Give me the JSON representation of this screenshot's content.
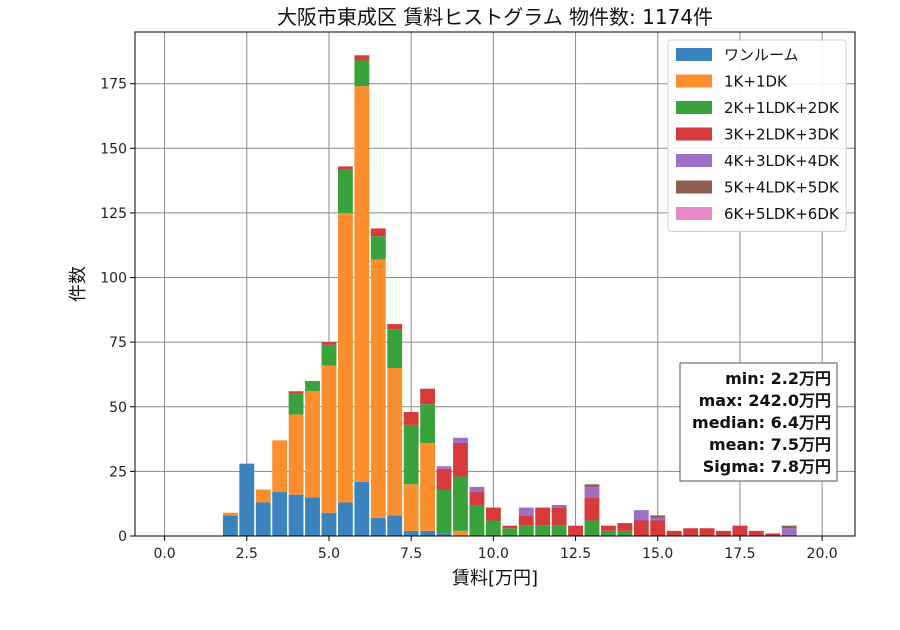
{
  "chart_data": {
    "type": "bar",
    "stacked": true,
    "title": "大阪市東成区 賃料ヒストグラム  物件数: 1174件",
    "xlabel": "賃料[万円]",
    "ylabel": "件数",
    "xlim": [
      -0.9,
      21.0
    ],
    "ylim": [
      0,
      195
    ],
    "xticks": [
      0.0,
      2.5,
      5.0,
      7.5,
      10.0,
      12.5,
      15.0,
      17.5,
      20.0
    ],
    "xtick_labels": [
      "0.0",
      "2.5",
      "5.0",
      "7.5",
      "10.0",
      "12.5",
      "15.0",
      "17.5",
      "20.0"
    ],
    "yticks": [
      0,
      25,
      50,
      75,
      100,
      125,
      150,
      175
    ],
    "ytick_labels": [
      "0",
      "25",
      "50",
      "75",
      "100",
      "125",
      "150",
      "175"
    ],
    "grid": true,
    "legend_position": "top-right",
    "bin_width": 0.5,
    "x": [
      2.0,
      2.5,
      3.0,
      3.5,
      4.0,
      4.5,
      5.0,
      5.5,
      6.0,
      6.5,
      7.0,
      7.5,
      8.0,
      8.5,
      9.0,
      9.5,
      10.0,
      10.5,
      11.0,
      11.5,
      12.0,
      12.5,
      13.0,
      13.5,
      14.0,
      14.5,
      15.0,
      15.5,
      16.0,
      16.5,
      17.0,
      17.5,
      18.0,
      18.5,
      19.0,
      19.5
    ],
    "series": [
      {
        "name": "ワンルーム",
        "color": "#3a83bf",
        "values": [
          8,
          28,
          13,
          17,
          16,
          15,
          9,
          13,
          21,
          7,
          8,
          2,
          2,
          1,
          0,
          0,
          0,
          0,
          0,
          0,
          0,
          0,
          0,
          0,
          0,
          0,
          0,
          0,
          0,
          0,
          0,
          0,
          0,
          0,
          0,
          0
        ]
      },
      {
        "name": "1K+1DK",
        "color": "#fd8e2e",
        "values": [
          1,
          0,
          5,
          20,
          31,
          41,
          57,
          112,
          153,
          100,
          57,
          18,
          34,
          0,
          2,
          0,
          0,
          0,
          0,
          0,
          0,
          0,
          0,
          0,
          0,
          0,
          0,
          0,
          0,
          0,
          0,
          0,
          0,
          0,
          0,
          0
        ]
      },
      {
        "name": "2K+1LDK+2DK",
        "color": "#3aa23a",
        "values": [
          0,
          0,
          0,
          0,
          8,
          4,
          8,
          17,
          10,
          9,
          15,
          23,
          15,
          17,
          21,
          12,
          6,
          3,
          4,
          4,
          4,
          0,
          6,
          2,
          2,
          0,
          0,
          0,
          0,
          0,
          0,
          0,
          0,
          0,
          0,
          0
        ]
      },
      {
        "name": "3K+2LDK+3DK",
        "color": "#d63a3a",
        "values": [
          0,
          0,
          0,
          0,
          1,
          0,
          1,
          1,
          2,
          3,
          2,
          5,
          6,
          8,
          13,
          5,
          5,
          1,
          4,
          7,
          7,
          4,
          9,
          2,
          3,
          6,
          6,
          2,
          3,
          3,
          2,
          4,
          2,
          1,
          0,
          0
        ]
      },
      {
        "name": "4K+3LDK+4DK",
        "color": "#9e6fc4",
        "values": [
          0,
          0,
          0,
          0,
          0,
          0,
          0,
          0,
          0,
          0,
          0,
          0,
          0,
          1,
          2,
          2,
          0,
          0,
          3,
          0,
          1,
          0,
          4,
          0,
          0,
          4,
          1,
          0,
          0,
          0,
          0,
          0,
          0,
          0,
          3,
          0
        ]
      },
      {
        "name": "5K+4LDK+5DK",
        "color": "#8c5c4f",
        "values": [
          0,
          0,
          0,
          0,
          0,
          0,
          0,
          0,
          0,
          0,
          0,
          0,
          0,
          0,
          0,
          0,
          0,
          0,
          0,
          0,
          0,
          0,
          1,
          0,
          0,
          0,
          1,
          0,
          0,
          0,
          0,
          0,
          0,
          0,
          1,
          0
        ]
      },
      {
        "name": "6K+5LDK+6DK",
        "color": "#e788c9",
        "values": [
          0,
          0,
          0,
          0,
          0,
          0,
          0,
          0,
          0,
          0,
          0,
          0,
          0,
          0,
          0,
          0,
          0,
          0,
          0,
          0,
          0,
          0,
          0,
          0,
          0,
          0,
          0,
          0,
          0,
          0,
          0,
          0,
          0,
          0,
          0,
          0
        ]
      }
    ],
    "stats": {
      "min": "min: 2.2万円",
      "max": "max: 242.0万円",
      "median": "median: 6.4万円",
      "mean": "mean: 7.5万円",
      "sigma": "Sigma: 7.8万円"
    }
  }
}
